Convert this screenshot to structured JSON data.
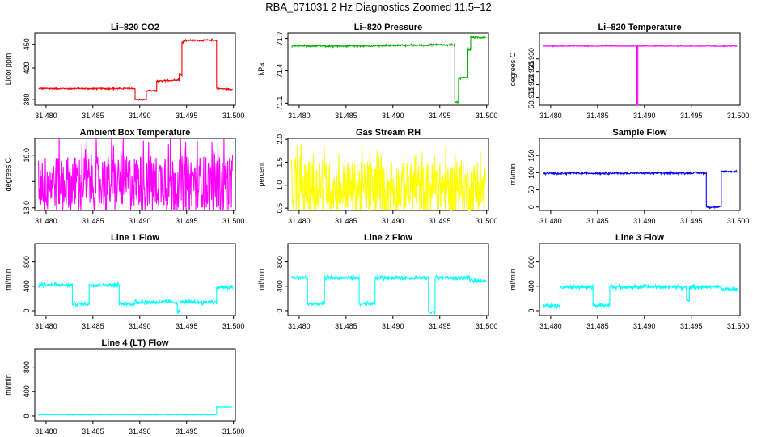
{
  "page_title": "RBA_071031  2 Hz Diagnostics Zoomed 11.5–12",
  "x_tick_labels": [
    "31.480",
    "31.485",
    "31.490",
    "31.495",
    "31.500"
  ],
  "chart_data": [
    {
      "type": "line",
      "title": "Li–820 CO2",
      "ylabel": "Licor ppm",
      "xlim": [
        31.4788,
        31.5002
      ],
      "ylim": [
        373,
        464
      ],
      "yticks": [
        380,
        420,
        450
      ],
      "yticklabels": [
        "380",
        "420",
        "450"
      ],
      "color": "#ff0000",
      "noise": 0.7,
      "series": {
        "x": [
          31.4792,
          31.4895,
          31.4895,
          31.4907,
          31.4907,
          31.4918,
          31.4918,
          31.4942,
          31.4942,
          31.4945,
          31.4945,
          31.4948,
          31.4948,
          31.4982,
          31.4982,
          31.4999
        ],
        "y": [
          394,
          394,
          380,
          380,
          391,
          391,
          403,
          405,
          413,
          410,
          453,
          453,
          455,
          455,
          394,
          393
        ]
      }
    },
    {
      "type": "line",
      "title": "Li–820 Pressure",
      "ylabel": "kPa",
      "xlim": [
        31.4788,
        31.5002
      ],
      "ylim": [
        71.08,
        71.75
      ],
      "yticks": [
        71.1,
        71.4,
        71.7
      ],
      "yticklabels": [
        "71.1",
        "71.4",
        "71.7"
      ],
      "color": "#00b000",
      "noise": 0.006,
      "series": {
        "x": [
          31.4792,
          31.488,
          31.488,
          31.494,
          31.494,
          31.4966,
          31.4966,
          31.497,
          31.497,
          31.498,
          31.498,
          31.4983,
          31.4983,
          31.4999
        ],
        "y": [
          71.632,
          71.63,
          71.635,
          71.64,
          71.645,
          71.64,
          71.11,
          71.11,
          71.33,
          71.34,
          71.6,
          71.6,
          71.71,
          71.71
        ]
      }
    },
    {
      "type": "line",
      "title": "Li–820 Temperature",
      "ylabel": "degrees C",
      "xlim": [
        31.4788,
        31.5002
      ],
      "ylim": [
        50.912,
        50.94
      ],
      "yticks": [
        50.915,
        50.92,
        50.925,
        50.93
      ],
      "yticklabels": [
        "50.915",
        "50.920",
        "50.925",
        "50.930"
      ],
      "color": "#ff00ff",
      "noise": 0.0001,
      "series": {
        "x": [
          31.4792,
          31.4892,
          31.4892,
          31.4893,
          31.4893,
          31.4999
        ],
        "y": [
          50.935,
          50.935,
          50.912,
          50.912,
          50.935,
          50.935
        ]
      }
    },
    {
      "type": "line",
      "title": "Ambient Box Temperature",
      "ylabel": "degrees C",
      "xlim": [
        31.4788,
        31.5002
      ],
      "ylim": [
        17.95,
        19.32
      ],
      "yticks": [
        18.0,
        18.5,
        19.0
      ],
      "yticklabels": [
        "18.0",
        "",
        "19.0"
      ],
      "color": "#ff00ff",
      "noise": 0.5,
      "series": {
        "x": [
          31.4792,
          31.4999
        ],
        "y": [
          18.5,
          18.5
        ]
      }
    },
    {
      "type": "line",
      "title": "Gas Stream RH",
      "ylabel": "percent",
      "xlim": [
        31.4788,
        31.5002
      ],
      "ylim": [
        0.45,
        2.02
      ],
      "yticks": [
        0.5,
        1.0,
        1.5,
        2.0
      ],
      "yticklabels": [
        "0.5",
        "1.0",
        "1.5",
        "2.0"
      ],
      "color": "#ffff00",
      "noise": 0.55,
      "series": {
        "x": [
          31.4792,
          31.4999
        ],
        "y": [
          0.95,
          0.95
        ]
      }
    },
    {
      "type": "line",
      "title": "Sample Flow",
      "ylabel": "ml/min",
      "xlim": [
        31.4788,
        31.5002
      ],
      "ylim": [
        -10,
        200
      ],
      "yticks": [
        0,
        50,
        100,
        150
      ],
      "yticklabels": [
        "0",
        "50",
        "100",
        "150"
      ],
      "color": "#0000ff",
      "noise": 2,
      "series": {
        "x": [
          31.4792,
          31.4966,
          31.4966,
          31.4982,
          31.4982,
          31.4999
        ],
        "y": [
          98,
          99,
          0,
          0,
          104,
          103
        ]
      }
    },
    {
      "type": "line",
      "title": "Line 1 Flow",
      "ylabel": "ml/min",
      "xlim": [
        31.4788,
        31.5002
      ],
      "ylim": [
        -80,
        1100
      ],
      "yticks": [
        0,
        400,
        800
      ],
      "yticklabels": [
        "0",
        "400",
        "800"
      ],
      "color": "#00ffff",
      "noise": 25,
      "series": {
        "x": [
          31.4792,
          31.4828,
          31.4828,
          31.4846,
          31.4846,
          31.4878,
          31.4878,
          31.4895,
          31.4895,
          31.494,
          31.494,
          31.4943,
          31.4943,
          31.4946,
          31.4946,
          31.4982,
          31.4982,
          31.4999
        ],
        "y": [
          420,
          420,
          110,
          110,
          420,
          420,
          110,
          110,
          140,
          140,
          -20,
          -20,
          140,
          140,
          140,
          140,
          380,
          380
        ]
      }
    },
    {
      "type": "line",
      "title": "Line 2 Flow",
      "ylabel": "ml/min",
      "xlim": [
        31.4788,
        31.5002
      ],
      "ylim": [
        -80,
        1100
      ],
      "yticks": [
        0,
        400,
        800
      ],
      "yticklabels": [
        "0",
        "400",
        "800"
      ],
      "color": "#00ffff",
      "noise": 25,
      "series": {
        "x": [
          31.4792,
          31.4809,
          31.4809,
          31.4827,
          31.4827,
          31.4864,
          31.4864,
          31.4881,
          31.4881,
          31.4938,
          31.4938,
          31.4945,
          31.4945,
          31.4982,
          31.4982,
          31.4999
        ],
        "y": [
          540,
          540,
          110,
          110,
          540,
          540,
          110,
          110,
          540,
          540,
          -20,
          -20,
          540,
          540,
          490,
          490
        ]
      }
    },
    {
      "type": "line",
      "title": "Line 3 Flow",
      "ylabel": "ml/min",
      "xlim": [
        31.4788,
        31.5002
      ],
      "ylim": [
        -80,
        1100
      ],
      "yticks": [
        0,
        400,
        800
      ],
      "yticklabels": [
        "0",
        "400",
        "800"
      ],
      "color": "#00ffff",
      "noise": 25,
      "series": {
        "x": [
          31.4792,
          31.481,
          31.481,
          31.4845,
          31.4845,
          31.4863,
          31.4863,
          31.4945,
          31.4945,
          31.4948,
          31.4948,
          31.4982,
          31.4982,
          31.4999
        ],
        "y": [
          80,
          80,
          390,
          390,
          90,
          90,
          390,
          390,
          170,
          170,
          390,
          390,
          350,
          350
        ]
      }
    },
    {
      "type": "line",
      "title": "Line 4 (LT) Flow",
      "ylabel": "ml/min",
      "xlim": [
        31.4788,
        31.5002
      ],
      "ylim": [
        -80,
        1100
      ],
      "yticks": [
        0,
        400,
        800
      ],
      "yticklabels": [
        "0",
        "400",
        "800"
      ],
      "color": "#00ffff",
      "noise": 4,
      "series": {
        "x": [
          31.4792,
          31.4982,
          31.4982,
          31.4999
        ],
        "y": [
          20,
          20,
          145,
          145
        ]
      }
    }
  ]
}
